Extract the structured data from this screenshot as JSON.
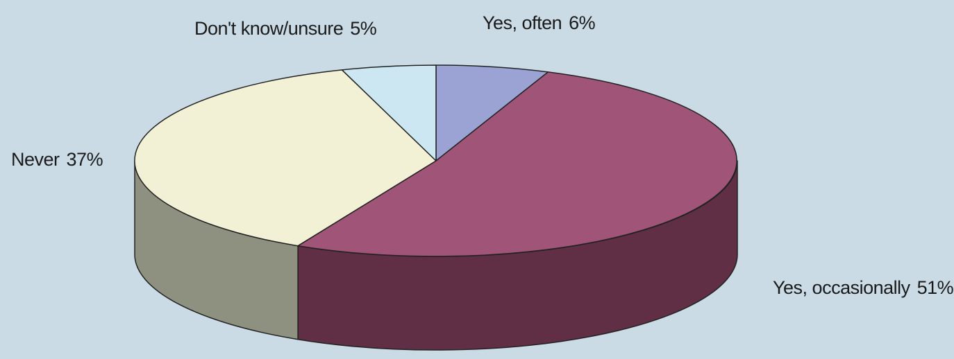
{
  "chart_data": {
    "type": "pie",
    "style": "3d",
    "start_angle_deg": 90,
    "direction": "clockwise",
    "slices": [
      {
        "label": "Yes, often",
        "value": 6,
        "value_label": "6%",
        "color": "#9aa3d3",
        "side_color": "#6b7295"
      },
      {
        "label": "Yes, occasionally",
        "value": 51,
        "value_label": "51%",
        "color": "#a05477",
        "side_color": "#602f45"
      },
      {
        "label": "Never",
        "value": 37,
        "value_label": "37%",
        "color": "#f3f1d5",
        "side_color": "#8f9180"
      },
      {
        "label": "Don't know/unsure",
        "value": 5,
        "value_label": "5%",
        "color": "#cce6f2",
        "side_color": "#8fa4ae"
      }
    ]
  },
  "colors": {
    "background": "#cadbe5",
    "outline": "#222222"
  }
}
